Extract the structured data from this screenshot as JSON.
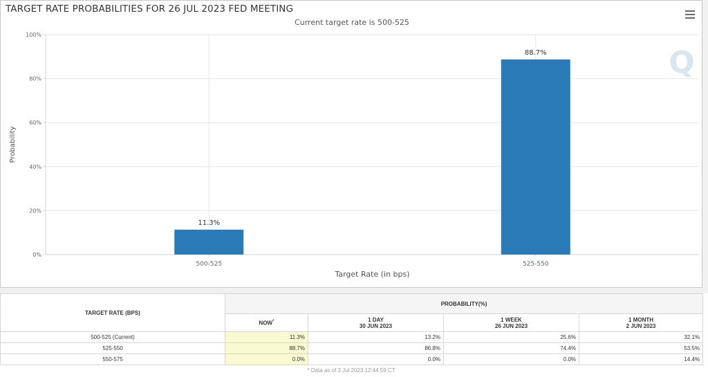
{
  "title": "TARGET RATE PROBABILITIES FOR 26 JUL 2023 FED MEETING",
  "subtitle": "Current target rate is 500-525",
  "chart_data": {
    "type": "bar",
    "categories": [
      "500-525",
      "525-550"
    ],
    "values": [
      11.3,
      88.7
    ],
    "data_labels": [
      "11.3%",
      "88.7%"
    ],
    "xlabel": "Target Rate (in bps)",
    "ylabel": "Probability",
    "ylim": [
      0,
      100
    ],
    "yticks": [
      0,
      20,
      40,
      60,
      80,
      100
    ],
    "ytick_labels": [
      "0%",
      "20%",
      "40%",
      "60%",
      "80%",
      "100%"
    ],
    "grid": true,
    "bar_color": "#2a7ab8"
  },
  "watermark_letter": "Q",
  "table": {
    "rate_header": "TARGET RATE (BPS)",
    "prob_header": "PROBABILITY(%)",
    "columns": [
      {
        "line1": "NOW",
        "sup": "*",
        "line2": ""
      },
      {
        "line1": "1 DAY",
        "line2": "30 JUN 2023"
      },
      {
        "line1": "1 WEEK",
        "line2": "26 JUN 2023"
      },
      {
        "line1": "1 MONTH",
        "line2": "2 JUN 2023"
      }
    ],
    "rows": [
      {
        "rate": "500-525 (Current)",
        "values": [
          "11.3%",
          "13.2%",
          "25.6%",
          "32.1%"
        ]
      },
      {
        "rate": "525-550",
        "values": [
          "88.7%",
          "86.8%",
          "74.4%",
          "53.5%"
        ]
      },
      {
        "rate": "550-575",
        "values": [
          "0.0%",
          "0.0%",
          "0.0%",
          "14.4%"
        ]
      }
    ],
    "footnote": "* Data as of 3 Jul 2023 12:44:59 CT"
  }
}
